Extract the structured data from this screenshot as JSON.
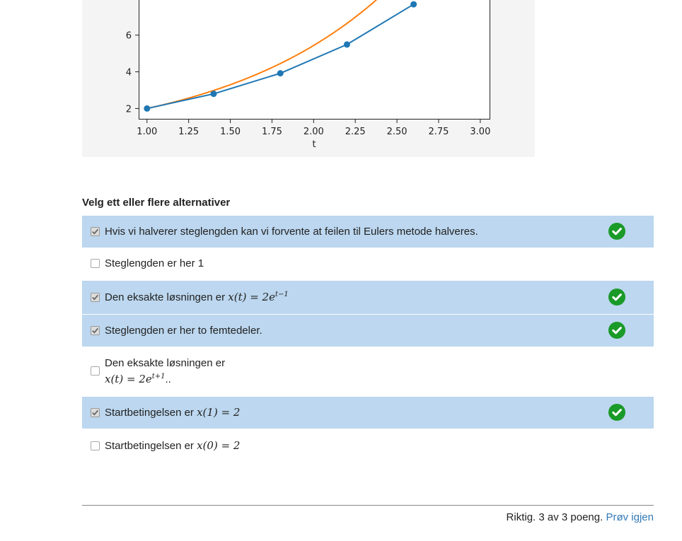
{
  "chart_data": {
    "type": "line",
    "xlabel": "t",
    "ylabel": "",
    "xlim": [
      0.95,
      3.06
    ],
    "ylim": [
      1.4,
      8.3
    ],
    "x_ticks": [
      "1.00",
      "1.25",
      "1.50",
      "1.75",
      "2.00",
      "2.25",
      "2.50",
      "2.75",
      "3.00"
    ],
    "x_tick_values": [
      1.0,
      1.25,
      1.5,
      1.75,
      2.0,
      2.25,
      2.5,
      2.75,
      3.0
    ],
    "y_ticks": [
      "2",
      "4",
      "6"
    ],
    "y_tick_values": [
      2,
      4,
      6
    ],
    "series": [
      {
        "color": "#1f77b4",
        "marker": "circle",
        "x": [
          1.0,
          1.4,
          1.8,
          2.2,
          2.6
        ],
        "y": [
          2.0,
          2.8,
          3.92,
          5.49,
          7.68
        ]
      },
      {
        "color": "#ff7f0e",
        "marker": "none",
        "function": "2*exp(t-1)",
        "x_start": 1.0,
        "x_end": 3.0
      }
    ]
  },
  "instruction": "Velg ett eller flere alternativer",
  "options": [
    {
      "text": "Hvis vi halverer steglengden kan vi forvente at feilen til Eulers metode halveres.",
      "checked": true,
      "correct": true
    },
    {
      "text": "Steglengden er her 1",
      "checked": false,
      "correct": false
    },
    {
      "text": "Den eksakte løsningen er",
      "math": "x(t) = 2e",
      "math_sup": "t−1",
      "checked": true,
      "correct": true
    },
    {
      "text": "Steglengden er her to femtedeler.",
      "checked": true,
      "correct": true
    },
    {
      "text": "Den eksakte løsningen er",
      "math": "x(t) = 2e",
      "math_sup": "t+1",
      "math_suffix": "..",
      "checked": false,
      "correct": false
    },
    {
      "text": "Startbetingelsen er",
      "math": "x(1) = 2",
      "checked": true,
      "correct": true
    },
    {
      "text": "Startbetingelsen er",
      "math": "x(0) = 2",
      "checked": false,
      "correct": false
    }
  ],
  "score": {
    "text": "Riktig. 3 av 3 poeng.",
    "retry_label": "Prøv igjen"
  },
  "colors": {
    "checked_row": "#bcd7ef",
    "badge_green": "#1a9a28",
    "link": "#337ab7"
  }
}
